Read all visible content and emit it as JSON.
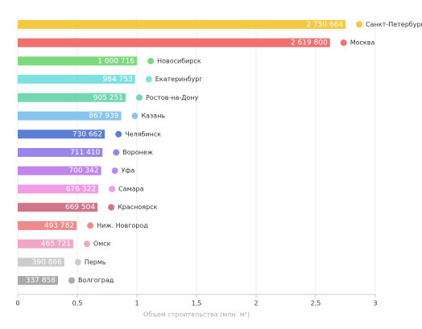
{
  "chart_data": {
    "type": "bar",
    "orientation": "horizontal",
    "x_label": "Объем строительства (млн. м²)",
    "categories": [
      "Санкт-Петербург",
      "Москва",
      "Новосибирск",
      "Екатеринбург",
      "Ростов-на-Дону",
      "Казань",
      "Челябинск",
      "Воронеж",
      "Уфа",
      "Самара",
      "Красноярск",
      "Ниж. Новгород",
      "Омск",
      "Пермь",
      "Волгоград"
    ],
    "values": [
      2.750664,
      2.6198,
      1.000716,
      0.984753,
      0.905251,
      0.867939,
      0.730662,
      0.71141,
      0.700342,
      0.676322,
      0.669504,
      0.493782,
      0.465721,
      0.390866,
      0.337858
    ],
    "value_labels": [
      "2 750 664",
      "2 619 800",
      "1 000 716",
      "984 753",
      "905 251",
      "867 939",
      "730 662",
      "711 410",
      "700 342",
      "676 322",
      "669 504",
      "493 782",
      "465 721",
      "390 866",
      "337 858"
    ],
    "colors": [
      "#f5c842",
      "#f07070",
      "#7ed87e",
      "#7fe0e0",
      "#72d8b0",
      "#88c4ef",
      "#5b7fd4",
      "#9a86e8",
      "#c285ee",
      "#ef9be8",
      "#d0748a",
      "#f08a8a",
      "#f0a6c8",
      "#cccccc",
      "#aaaaaa"
    ],
    "xlim": [
      0,
      3
    ],
    "xticks": [
      0,
      {
        "value": 0.5,
        "label": "0,5"
      },
      1,
      {
        "value": 1.5,
        "label": "1,5"
      },
      2,
      {
        "value": 2.5,
        "label": "2,5"
      },
      3
    ],
    "grid": true
  }
}
